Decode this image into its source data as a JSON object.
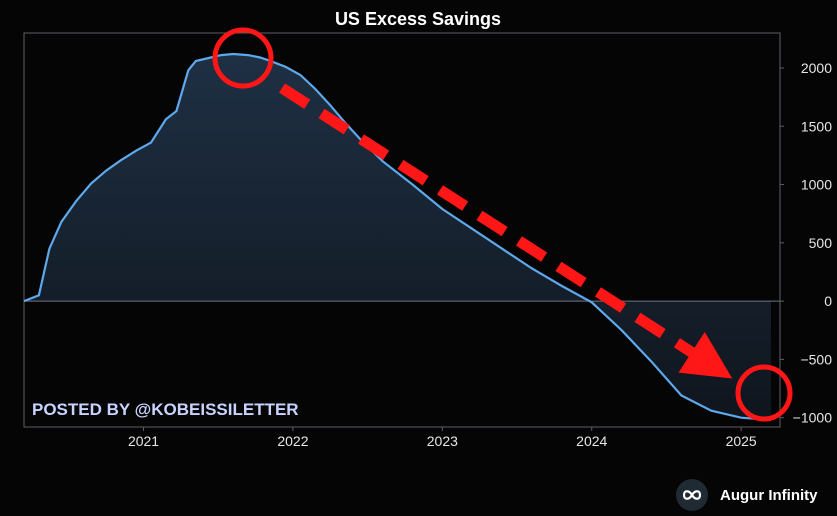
{
  "chart_data": {
    "type": "area",
    "title": "US Excess Savings",
    "xlabel": "",
    "ylabel": "",
    "xlim": [
      2020.2,
      2025.26
    ],
    "ylim": [
      -1080,
      2300
    ],
    "x_ticks": [
      2021,
      2022,
      2023,
      2024,
      2025
    ],
    "x_tick_labels": [
      "2021",
      "2022",
      "2023",
      "2024",
      "2025"
    ],
    "y_ticks": [
      2000,
      1500,
      1000,
      500,
      0,
      -500,
      -1000
    ],
    "y_tick_labels": [
      "2000",
      "1500",
      "1000",
      "500",
      "0",
      "−500",
      "−1000"
    ],
    "grid": false,
    "legend": "none",
    "series": [
      {
        "x": [
          2020.2,
          2020.3,
          2020.37,
          2020.45,
          2020.55,
          2020.65,
          2020.75,
          2020.85,
          2020.95,
          2021.05,
          2021.15,
          2021.22,
          2021.3,
          2021.35,
          2021.45,
          2021.52,
          2021.6,
          2021.7,
          2021.78,
          2021.85,
          2021.95,
          2022.05,
          2022.15,
          2022.25,
          2022.35,
          2022.45,
          2022.6,
          2022.8,
          2023.0,
          2023.2,
          2023.4,
          2023.6,
          2023.8,
          2024.0,
          2024.2,
          2024.4,
          2024.6,
          2024.8,
          2025.0,
          2025.1,
          2025.2
        ],
        "y": [
          0,
          50,
          450,
          680,
          860,
          1010,
          1120,
          1210,
          1290,
          1360,
          1560,
          1630,
          1980,
          2060,
          2090,
          2110,
          2120,
          2110,
          2090,
          2060,
          2010,
          1940,
          1820,
          1680,
          1530,
          1390,
          1200,
          1000,
          790,
          620,
          450,
          280,
          130,
          -10,
          -250,
          -520,
          -810,
          -940,
          -1000,
          -1010,
          -1020
        ],
        "color": "#5ea8ec"
      }
    ],
    "annotations": {
      "watermark": "POSTED BY @KOBEISSILETTER",
      "brand": "Augur Infinity",
      "arrow_color": "#ff1717",
      "circle_color": "#ff1717"
    }
  }
}
